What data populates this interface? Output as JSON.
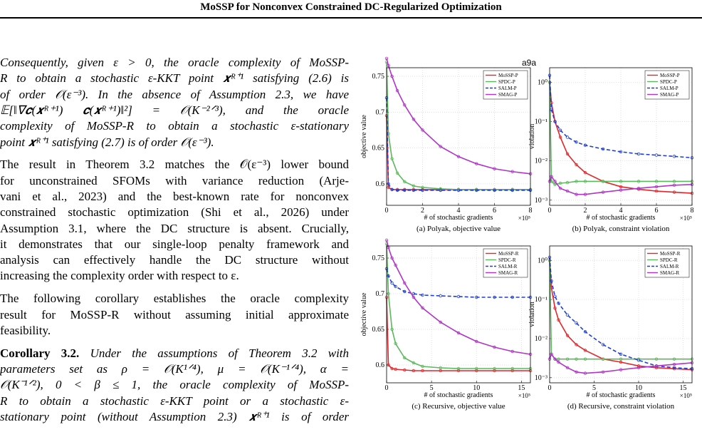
{
  "header": {
    "title": "MoSSP for Nonconvex Constrained DC-Regularized Optimization"
  },
  "body": {
    "paragraphs": [
      {
        "style": "italic",
        "lines": [
          "Consequently, given ε > 0, the oracle complexity of MoSSP-",
          "R to obtain a stochastic ε-KKT point 𝒙ᴿ⁺¹ satisfying (2.6) is",
          "of order 𝒪(ε⁻³). In the absence of Assumption 2.3, we have",
          "𝔼[‖∇𝒄(𝒙ᴿ⁺¹) 𝒄(𝒙ᴿ⁺¹)‖²] = 𝒪(K⁻²ᐟ³), and the oracle",
          "complexity of MoSSP-R to obtain a stochastic ε-stationary",
          "point 𝒙ᴿ⁺¹ satisfying (2.7) is of order 𝒪(ε⁻³)."
        ]
      },
      {
        "style": "normal",
        "lines": [
          "The result in Theorem 3.2 matches the 𝒪(ε⁻³) lower bound",
          "for unconstrained SFOMs with variance reduction (Arje-",
          "vani et al., 2023) and the best-known rate for nonconvex",
          "constrained stochastic optimization (Shi et al., 2026) under",
          "Assumption 3.1, where the DC structure is absent. Crucially,",
          "it demonstrates that our single-loop penalty framework and",
          "analysis can effectively handle the DC structure without",
          "increasing the complexity order with respect to ε."
        ]
      },
      {
        "style": "normal",
        "lines": [
          "The following corollary establishes the oracle complexity",
          "result for MoSSP-R without assuming initial approximate",
          "feasibility."
        ]
      }
    ],
    "corollary": {
      "label": "Corollary 3.2.",
      "lines": [
        "Under the assumptions of Theorem 3.2 with",
        "parameters set as ρ = 𝒪(K¹ᐟ⁴), μ = 𝒪(K⁻¹ᐟ⁴), α =",
        "𝒪(K⁻¹ᐟ²), 0 < β ≤ 1, the oracle complexity of MoSSP-",
        "R to obtain a stochastic ε-KKT point or a stochastic ε-",
        "stationary point (without Assumption 2.3) 𝒙ᴿ⁺¹ is of order"
      ]
    }
  },
  "figure": {
    "title": "a9a"
  },
  "chart_data": [
    {
      "type": "line",
      "caption": "(a) Polyak, objective value",
      "xlabel": "# of stochastic gradients",
      "x_scale_label": "×10⁵",
      "ylabel": "objective value",
      "log_y": false,
      "grid": true,
      "legend": "top-right",
      "xlim": [
        0,
        8
      ],
      "xticks": [
        0,
        2,
        4,
        6,
        8
      ],
      "ylim": [
        0.57,
        0.762
      ],
      "yticks": [
        0.6,
        0.65,
        0.7,
        0.75
      ],
      "x": [
        0,
        0.1,
        0.3,
        0.6,
        1,
        1.5,
        2,
        3,
        4,
        5,
        6,
        7,
        8
      ],
      "series": [
        {
          "name": "MoSSP-P",
          "color": "#e3262b",
          "values": [
            0.695,
            0.595,
            0.592,
            0.592,
            0.592,
            0.592,
            0.592,
            0.592,
            0.592,
            0.592,
            0.592,
            0.592,
            0.592
          ]
        },
        {
          "name": "SPDC-P",
          "color": "#5cb85c",
          "values": [
            0.77,
            0.67,
            0.635,
            0.615,
            0.603,
            0.597,
            0.595,
            0.593,
            0.592,
            0.592,
            0.592,
            0.592,
            0.592
          ]
        },
        {
          "name": "SALM-P",
          "color": "#1f3fd6",
          "values": [
            0.72,
            0.6,
            0.592,
            0.591,
            0.591,
            0.591,
            0.591,
            0.591,
            0.591,
            0.591,
            0.591,
            0.591,
            0.591
          ]
        },
        {
          "name": "SMAG-P",
          "color": "#b034c8",
          "values": [
            0.775,
            0.765,
            0.75,
            0.73,
            0.71,
            0.69,
            0.675,
            0.652,
            0.638,
            0.628,
            0.621,
            0.617,
            0.614
          ]
        }
      ]
    },
    {
      "type": "line",
      "caption": "(b) Polyak, constraint violation",
      "xlabel": "# of stochastic gradients",
      "x_scale_label": "×10⁵",
      "ylabel": "violation",
      "log_y": true,
      "grid": true,
      "legend": "top-right",
      "xlim": [
        0,
        8
      ],
      "xticks": [
        0,
        2,
        4,
        6,
        8
      ],
      "ylim": [
        0.00074,
        2.34
      ],
      "yticks": [
        {
          "value": 1,
          "label": "10⁰"
        },
        {
          "value": 0.1,
          "label": "10⁻¹"
        },
        {
          "value": 0.01,
          "label": "10⁻²"
        },
        {
          "value": 0.001,
          "label": "10⁻³"
        }
      ],
      "x": [
        0,
        0.1,
        0.3,
        0.6,
        1,
        1.5,
        2,
        3,
        4,
        5,
        6,
        7,
        8
      ],
      "series": [
        {
          "name": "MoSSP-P",
          "color": "#e3262b",
          "values": [
            1,
            0.3,
            0.1,
            0.04,
            0.015,
            0.008,
            0.005,
            0.003,
            0.0022,
            0.0019,
            0.0017,
            0.0016,
            0.0015
          ]
        },
        {
          "name": "SPDC-P",
          "color": "#5cb85c",
          "values": [
            1,
            0.003,
            0.0025,
            0.0027,
            0.0028,
            0.003,
            0.003,
            0.003,
            0.003,
            0.003,
            0.003,
            0.003,
            0.003
          ]
        },
        {
          "name": "SALM-P",
          "color": "#1f3fd6",
          "values": [
            1.5,
            0.2,
            0.1,
            0.06,
            0.04,
            0.03,
            0.025,
            0.02,
            0.017,
            0.015,
            0.014,
            0.013,
            0.012
          ]
        },
        {
          "name": "SMAG-P",
          "color": "#b034c8",
          "values": [
            0.003,
            0.004,
            0.003,
            0.002,
            0.0017,
            0.0014,
            0.0014,
            0.0016,
            0.0018,
            0.002,
            0.0022,
            0.0024,
            0.0025
          ]
        }
      ]
    },
    {
      "type": "line",
      "caption": "(c) Recursive, objective value",
      "xlabel": "# of stochastic gradients",
      "x_scale_label": "×10⁵",
      "ylabel": "objective value",
      "log_y": false,
      "grid": true,
      "legend": "top-right",
      "xlim": [
        0,
        16
      ],
      "xticks": [
        0,
        5,
        10,
        15
      ],
      "ylim": [
        0.575,
        0.767
      ],
      "yticks": [
        0.6,
        0.65,
        0.7,
        0.75
      ],
      "x": [
        0,
        0.2,
        0.6,
        1,
        2,
        3,
        4,
        6,
        8,
        10,
        12,
        14,
        16
      ],
      "series": [
        {
          "name": "MoSSP-R",
          "color": "#e3262b",
          "values": [
            0.695,
            0.6,
            0.595,
            0.594,
            0.593,
            0.592,
            0.592,
            0.592,
            0.592,
            0.592,
            0.592,
            0.592,
            0.592
          ]
        },
        {
          "name": "SPDC-R",
          "color": "#5cb85c",
          "values": [
            0.77,
            0.7,
            0.65,
            0.63,
            0.61,
            0.603,
            0.598,
            0.596,
            0.595,
            0.595,
            0.595,
            0.595,
            0.595
          ]
        },
        {
          "name": "SALM-R",
          "color": "#1f3fd6",
          "values": [
            0.735,
            0.725,
            0.715,
            0.71,
            0.703,
            0.7,
            0.698,
            0.697,
            0.696,
            0.695,
            0.695,
            0.695,
            0.695
          ]
        },
        {
          "name": "SMAG-R",
          "color": "#b034c8",
          "values": [
            0.775,
            0.765,
            0.75,
            0.74,
            0.715,
            0.695,
            0.68,
            0.66,
            0.645,
            0.633,
            0.625,
            0.619,
            0.615
          ]
        }
      ]
    },
    {
      "type": "line",
      "caption": "(d) Recursive, constraint violation",
      "xlabel": "# of stochastic gradients",
      "x_scale_label": "×10⁵",
      "ylabel": "violation",
      "log_y": true,
      "grid": true,
      "legend": "top-right",
      "xlim": [
        0,
        16
      ],
      "xticks": [
        0,
        5,
        10,
        15
      ],
      "ylim": [
        0.00074,
        2.34
      ],
      "yticks": [
        {
          "value": 1,
          "label": "10⁰"
        },
        {
          "value": 0.1,
          "label": "10⁻¹"
        },
        {
          "value": 0.01,
          "label": "10⁻²"
        },
        {
          "value": 0.001,
          "label": "10⁻³"
        }
      ],
      "x": [
        0,
        0.2,
        0.6,
        1,
        2,
        3,
        4,
        6,
        8,
        10,
        12,
        14,
        16
      ],
      "series": [
        {
          "name": "MoSSP-R",
          "color": "#e3262b",
          "values": [
            1,
            0.2,
            0.06,
            0.03,
            0.012,
            0.007,
            0.005,
            0.003,
            0.0025,
            0.002,
            0.0018,
            0.0017,
            0.0016
          ]
        },
        {
          "name": "SPDC-R",
          "color": "#5cb85c",
          "values": [
            1,
            0.004,
            0.003,
            0.003,
            0.003,
            0.003,
            0.003,
            0.003,
            0.003,
            0.003,
            0.003,
            0.003,
            0.003
          ]
        },
        {
          "name": "SALM-R",
          "color": "#1f3fd6",
          "values": [
            1.2,
            0.3,
            0.12,
            0.08,
            0.04,
            0.025,
            0.015,
            0.007,
            0.004,
            0.0028,
            0.002,
            0.0018,
            0.0017
          ]
        },
        {
          "name": "SMAG-R",
          "color": "#b034c8",
          "values": [
            0.003,
            0.004,
            0.003,
            0.0025,
            0.0018,
            0.0014,
            0.0013,
            0.0014,
            0.0016,
            0.0018,
            0.002,
            0.0022,
            0.0024
          ]
        }
      ]
    }
  ]
}
